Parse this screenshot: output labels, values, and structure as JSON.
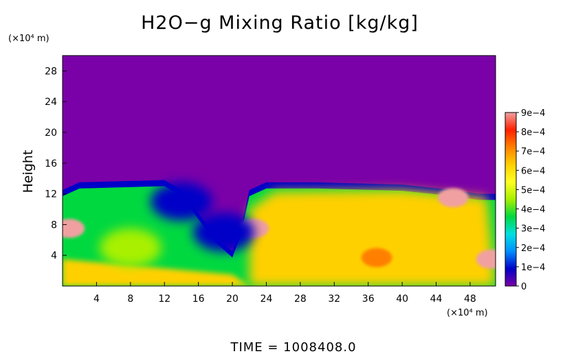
{
  "chart_data": {
    "type": "heatmap",
    "title": "H2O−g Mixing Ratio [kg/kg]",
    "xlabel": "",
    "ylabel": "Height",
    "x_unit": "(×10⁴ m)",
    "y_unit": "(×10⁴ m)",
    "xlim": [
      0,
      51
    ],
    "ylim": [
      0,
      30
    ],
    "x_ticks": [
      4,
      8,
      12,
      16,
      20,
      24,
      28,
      32,
      36,
      40,
      44,
      48
    ],
    "y_ticks": [
      4,
      8,
      12,
      16,
      20,
      24,
      28
    ],
    "colorbar": {
      "range": [
        0,
        0.0009
      ],
      "tick_labels": [
        "0",
        "1e−4",
        "2e−4",
        "3e−4",
        "4e−4",
        "5e−4",
        "6e−4",
        "7e−4",
        "8e−4",
        "9e−4"
      ],
      "colors": [
        "#7a00a8",
        "#0000c8",
        "#0090ff",
        "#00e0e0",
        "#00d840",
        "#a8f000",
        "#ffff20",
        "#ffd000",
        "#ff8000",
        "#ff2000",
        "#f0a0a0"
      ]
    },
    "background_value": 0,
    "moist_layer_top": 13.5,
    "features": [
      {
        "x": 37,
        "y": 3.7,
        "value": 0.00075
      },
      {
        "x": 46,
        "y": 11.5,
        "value": 0.0009
      },
      {
        "x": 0.8,
        "y": 7.5,
        "value": 0.0009
      },
      {
        "x": 22.5,
        "y": 7.5,
        "value": 0.0009
      },
      {
        "x": 50.5,
        "y": 3.5,
        "value": 0.0009
      },
      {
        "x": 14,
        "y": 11,
        "value": 8e-05
      },
      {
        "x": 19,
        "y": 7,
        "value": 5e-05
      },
      {
        "x": 30,
        "y": 8,
        "value": 0.00062
      },
      {
        "x": 8,
        "y": 5,
        "value": 0.00045
      }
    ]
  },
  "footer": {
    "time_label": "TIME  =  1008408.0"
  }
}
